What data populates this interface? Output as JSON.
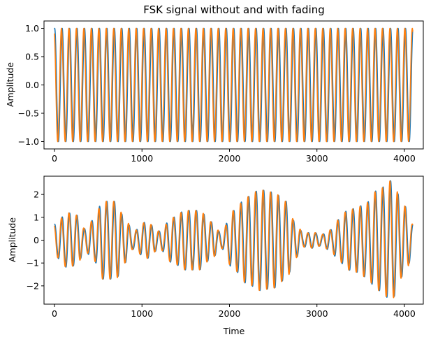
{
  "chart_data": [
    {
      "type": "line",
      "title": "FSK signal without and with fading",
      "xlabel": "",
      "ylabel": "Amplitude",
      "xlim": [
        -120,
        4216
      ],
      "ylim": [
        -1.13,
        1.13
      ],
      "xticks": [
        0,
        1000,
        2000,
        3000,
        4000
      ],
      "yticks": [
        -1.0,
        -0.5,
        0.0,
        0.5,
        1.0
      ],
      "ytick_labels": [
        "−1.0",
        "−0.5",
        "0.0",
        "0.5",
        "1.0"
      ],
      "n_samples": 4096,
      "series": [
        {
          "color": "#1f77b4",
          "description": "FSK waveform, constant amplitude 1.0, oscillating between -1 and 1",
          "amplitude": 1.0,
          "cycles": 48,
          "phase": 0.0
        },
        {
          "color": "#ff7f0e",
          "description": "FSK waveform, constant amplitude 1.0, oscillating between -1 and 1",
          "amplitude": 1.0,
          "cycles": 48,
          "phase": 0.6
        }
      ]
    },
    {
      "type": "line",
      "title": "",
      "xlabel": "Time",
      "ylabel": "Amplitude",
      "xlim": [
        -120,
        4216
      ],
      "ylim": [
        -2.8,
        2.8
      ],
      "xticks": [
        0,
        1000,
        2000,
        3000,
        4000
      ],
      "yticks": [
        -2,
        -1,
        0,
        1,
        2
      ],
      "ytick_labels": [
        "−2",
        "−1",
        "0",
        "1",
        "2"
      ],
      "n_samples": 4096,
      "envelope": {
        "x": [
          0,
          150,
          250,
          350,
          450,
          550,
          700,
          800,
          900,
          1050,
          1200,
          1350,
          1500,
          1650,
          1800,
          1900,
          2050,
          2200,
          2350,
          2500,
          2650,
          2750,
          2850,
          2950,
          3050,
          3150,
          3250,
          3350,
          3450,
          3550,
          3700,
          3850,
          4000,
          4096
        ],
        "y": [
          0.7,
          1.2,
          1.1,
          0.5,
          0.9,
          1.7,
          1.7,
          1.0,
          0.4,
          0.8,
          0.4,
          1.0,
          1.3,
          1.3,
          0.8,
          0.35,
          1.3,
          1.9,
          2.2,
          2.1,
          1.7,
          0.8,
          0.3,
          0.35,
          0.25,
          0.45,
          0.9,
          1.3,
          1.4,
          1.6,
          2.2,
          2.6,
          1.5,
          0.7
        ]
      },
      "series": [
        {
          "color": "#1f77b4",
          "description": "faded FSK waveform, envelope varying between about 0.25 and 2.6",
          "cycles": 48,
          "phase": 0.0
        },
        {
          "color": "#ff7f0e",
          "description": "faded FSK waveform, envelope varying between about 0.25 and 2.6",
          "cycles": 48,
          "phase": 0.6
        }
      ]
    }
  ]
}
